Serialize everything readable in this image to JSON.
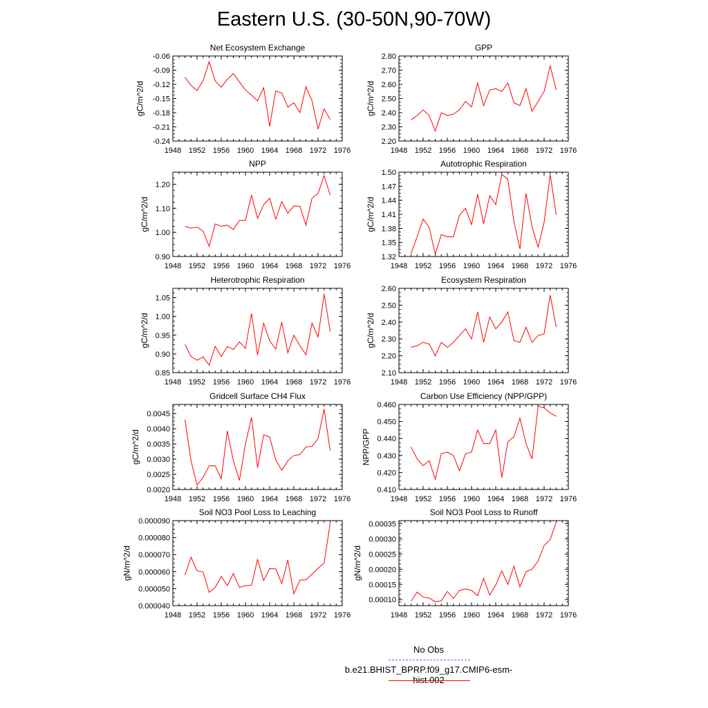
{
  "title": "Eastern U.S. (30-50N,90-70W)",
  "colors": {
    "model": "#ff0000",
    "obs": "#6a6ae0"
  },
  "legend": {
    "obs_label": "No Obs",
    "model_label": "b.e21.BHIST_BPRP.f09_g17.CMIP6-esm-hist.002"
  },
  "chart_data": [
    {
      "type": "line",
      "title": "Net Ecosystem Exchange",
      "ylabel": "gC/m^2/d",
      "xlim": [
        1948,
        1976
      ],
      "ylim": [
        -0.24,
        -0.06
      ],
      "xticks": [
        "1948",
        "1952",
        "1956",
        "1960",
        "1964",
        "1968",
        "1972",
        "1976"
      ],
      "yticks": [
        "-0.24",
        "-0.21",
        "-0.18",
        "-0.15",
        "-0.12",
        "-0.09",
        "-0.06"
      ],
      "series": [
        {
          "x": [
            1950,
            1951,
            1952,
            1953,
            1954,
            1955,
            1956,
            1957,
            1958,
            1959,
            1960,
            1961,
            1962,
            1963,
            1964,
            1965,
            1966,
            1967,
            1968,
            1969,
            1970,
            1971,
            1972,
            1973,
            1974
          ],
          "y": [
            -0.105,
            -0.122,
            -0.133,
            -0.112,
            -0.072,
            -0.113,
            -0.126,
            -0.109,
            -0.097,
            -0.115,
            -0.132,
            -0.143,
            -0.155,
            -0.127,
            -0.209,
            -0.134,
            -0.138,
            -0.168,
            -0.159,
            -0.18,
            -0.125,
            -0.155,
            -0.215,
            -0.172,
            -0.194
          ]
        }
      ]
    },
    {
      "type": "line",
      "title": "GPP",
      "ylabel": "gC/m^2/d",
      "xlim": [
        1948,
        1976
      ],
      "ylim": [
        2.2,
        2.8
      ],
      "xticks": [
        "1948",
        "1952",
        "1956",
        "1960",
        "1964",
        "1968",
        "1972",
        "1976"
      ],
      "yticks": [
        "2.20",
        "2.30",
        "2.40",
        "2.50",
        "2.60",
        "2.70",
        "2.80"
      ],
      "series": [
        {
          "x": [
            1950,
            1951,
            1952,
            1953,
            1954,
            1955,
            1956,
            1957,
            1958,
            1959,
            1960,
            1961,
            1962,
            1963,
            1964,
            1965,
            1966,
            1967,
            1968,
            1969,
            1970,
            1971,
            1972,
            1973,
            1974
          ],
          "y": [
            2.35,
            2.38,
            2.42,
            2.38,
            2.27,
            2.4,
            2.38,
            2.39,
            2.42,
            2.48,
            2.44,
            2.61,
            2.45,
            2.56,
            2.57,
            2.55,
            2.61,
            2.47,
            2.45,
            2.57,
            2.41,
            2.48,
            2.55,
            2.73,
            2.56
          ]
        }
      ]
    },
    {
      "type": "line",
      "title": "NPP",
      "ylabel": "gC/m^2/d",
      "xlim": [
        1948,
        1976
      ],
      "ylim": [
        0.9,
        1.25
      ],
      "xticks": [
        "1948",
        "1952",
        "1956",
        "1960",
        "1964",
        "1968",
        "1972",
        "1976"
      ],
      "yticks": [
        "0.90",
        "1.00",
        "1.10",
        "1.20"
      ],
      "series": [
        {
          "x": [
            1950,
            1951,
            1952,
            1953,
            1954,
            1955,
            1956,
            1957,
            1958,
            1959,
            1960,
            1961,
            1962,
            1963,
            1964,
            1965,
            1966,
            1967,
            1968,
            1969,
            1970,
            1971,
            1972,
            1973,
            1974
          ],
          "y": [
            1.025,
            1.018,
            1.022,
            1.005,
            0.942,
            1.035,
            1.025,
            1.03,
            1.012,
            1.05,
            1.05,
            1.155,
            1.058,
            1.115,
            1.142,
            1.055,
            1.128,
            1.08,
            1.11,
            1.108,
            1.03,
            1.142,
            1.162,
            1.235,
            1.155
          ]
        }
      ]
    },
    {
      "type": "line",
      "title": "Autotrophic Respiration",
      "ylabel": "gC/m^2/d",
      "xlim": [
        1948,
        1976
      ],
      "ylim": [
        1.32,
        1.5
      ],
      "xticks": [
        "1948",
        "1952",
        "1956",
        "1960",
        "1964",
        "1968",
        "1972",
        "1976"
      ],
      "yticks": [
        "1.32",
        "1.35",
        "1.38",
        "1.41",
        "1.44",
        "1.47",
        "1.50"
      ],
      "series": [
        {
          "x": [
            1950,
            1951,
            1952,
            1953,
            1954,
            1955,
            1956,
            1957,
            1958,
            1959,
            1960,
            1961,
            1962,
            1963,
            1964,
            1965,
            1966,
            1967,
            1968,
            1969,
            1970,
            1971,
            1972,
            1973,
            1974
          ],
          "y": [
            1.326,
            1.362,
            1.4,
            1.382,
            1.325,
            1.367,
            1.362,
            1.362,
            1.408,
            1.423,
            1.388,
            1.453,
            1.39,
            1.45,
            1.431,
            1.495,
            1.485,
            1.395,
            1.336,
            1.455,
            1.384,
            1.34,
            1.393,
            1.495,
            1.409
          ]
        }
      ]
    },
    {
      "type": "line",
      "title": "Heterotrophic Respiration",
      "ylabel": "gC/m^2/d",
      "xlim": [
        1948,
        1976
      ],
      "ylim": [
        0.85,
        1.075
      ],
      "xticks": [
        "1948",
        "1952",
        "1956",
        "1960",
        "1964",
        "1968",
        "1972",
        "1976"
      ],
      "yticks": [
        "0.85",
        "0.90",
        "0.95",
        "1.00",
        "1.05"
      ],
      "series": [
        {
          "x": [
            1950,
            1951,
            1952,
            1953,
            1954,
            1955,
            1956,
            1957,
            1958,
            1959,
            1960,
            1961,
            1962,
            1963,
            1964,
            1965,
            1966,
            1967,
            1968,
            1969,
            1970,
            1971,
            1972,
            1973,
            1974
          ],
          "y": [
            0.925,
            0.893,
            0.883,
            0.892,
            0.87,
            0.92,
            0.893,
            0.92,
            0.912,
            0.932,
            0.915,
            1.008,
            0.897,
            0.982,
            0.935,
            0.913,
            0.985,
            0.903,
            0.95,
            0.922,
            0.898,
            0.982,
            0.945,
            1.06,
            0.96
          ]
        }
      ]
    },
    {
      "type": "line",
      "title": "Ecosystem Respiration",
      "ylabel": "gC/m^2/d",
      "xlim": [
        1948,
        1976
      ],
      "ylim": [
        2.1,
        2.6
      ],
      "xticks": [
        "1948",
        "1952",
        "1956",
        "1960",
        "1964",
        "1968",
        "1972",
        "1976"
      ],
      "yticks": [
        "2.10",
        "2.20",
        "2.30",
        "2.40",
        "2.50",
        "2.60"
      ],
      "series": [
        {
          "x": [
            1950,
            1951,
            1952,
            1953,
            1954,
            1955,
            1956,
            1957,
            1958,
            1959,
            1960,
            1961,
            1962,
            1963,
            1964,
            1965,
            1966,
            1967,
            1968,
            1969,
            1970,
            1971,
            1972,
            1973,
            1974
          ],
          "y": [
            2.25,
            2.26,
            2.28,
            2.27,
            2.2,
            2.28,
            2.25,
            2.28,
            2.32,
            2.36,
            2.3,
            2.46,
            2.28,
            2.43,
            2.36,
            2.4,
            2.46,
            2.29,
            2.28,
            2.37,
            2.28,
            2.32,
            2.33,
            2.56,
            2.37
          ]
        }
      ]
    },
    {
      "type": "line",
      "title": "Gridcell Surface CH4 Flux",
      "ylabel": "gC/m^2/d",
      "xlim": [
        1948,
        1976
      ],
      "ylim": [
        0.002,
        0.0048
      ],
      "xticks": [
        "1948",
        "1952",
        "1956",
        "1960",
        "1964",
        "1968",
        "1972",
        "1976"
      ],
      "yticks": [
        "0.0020",
        "0.0025",
        "0.0030",
        "0.0035",
        "0.0040",
        "0.0045"
      ],
      "series": [
        {
          "x": [
            1950,
            1951,
            1952,
            1953,
            1954,
            1955,
            1956,
            1957,
            1958,
            1959,
            1960,
            1961,
            1962,
            1963,
            1964,
            1965,
            1966,
            1967,
            1968,
            1969,
            1970,
            1971,
            1972,
            1973,
            1974
          ],
          "y": [
            0.0043,
            0.00295,
            0.00215,
            0.0024,
            0.00278,
            0.00278,
            0.00235,
            0.00393,
            0.00295,
            0.0023,
            0.0035,
            0.00438,
            0.00272,
            0.0038,
            0.00373,
            0.00298,
            0.00263,
            0.00295,
            0.00312,
            0.00315,
            0.0034,
            0.00342,
            0.00368,
            0.00465,
            0.00328
          ]
        }
      ]
    },
    {
      "type": "line",
      "title": "Carbon Use Efficiency (NPP/GPP)",
      "ylabel": "NPP/GPP",
      "xlim": [
        1948,
        1976
      ],
      "ylim": [
        0.41,
        0.46
      ],
      "xticks": [
        "1948",
        "1952",
        "1956",
        "1960",
        "1964",
        "1968",
        "1972",
        "1976"
      ],
      "yticks": [
        "0.410",
        "0.420",
        "0.430",
        "0.440",
        "0.450",
        "0.460"
      ],
      "series": [
        {
          "x": [
            1950,
            1951,
            1952,
            1953,
            1954,
            1955,
            1956,
            1957,
            1958,
            1959,
            1960,
            1961,
            1962,
            1963,
            1964,
            1965,
            1966,
            1967,
            1968,
            1969,
            1970,
            1971,
            1972,
            1973,
            1974
          ],
          "y": [
            0.435,
            0.428,
            0.424,
            0.427,
            0.416,
            0.431,
            0.432,
            0.43,
            0.421,
            0.431,
            0.432,
            0.445,
            0.437,
            0.437,
            0.445,
            0.417,
            0.438,
            0.441,
            0.452,
            0.437,
            0.428,
            0.459,
            0.458,
            0.455,
            0.453
          ]
        }
      ]
    },
    {
      "type": "line",
      "title": "Soil NO3 Pool Loss to Leaching",
      "ylabel": "gN/m^2/d",
      "xlim": [
        1948,
        1976
      ],
      "ylim": [
        4e-05,
        9e-05
      ],
      "xticks": [
        "1948",
        "1952",
        "1956",
        "1960",
        "1964",
        "1968",
        "1972",
        "1976"
      ],
      "yticks": [
        "0.000040",
        "0.000050",
        "0.000060",
        "0.000070",
        "0.000080",
        "0.000090"
      ],
      "series": [
        {
          "x": [
            1950,
            1951,
            1952,
            1953,
            1954,
            1955,
            1956,
            1957,
            1958,
            1959,
            1960,
            1961,
            1962,
            1963,
            1964,
            1965,
            1966,
            1967,
            1968,
            1969,
            1970,
            1971,
            1972,
            1973,
            1974
          ],
          "y": [
            5.8e-05,
            6.85e-05,
            6.05e-05,
            5.98e-05,
            4.78e-05,
            5.08e-05,
            5.72e-05,
            5.18e-05,
            5.9e-05,
            5.08e-05,
            5.18e-05,
            5.2e-05,
            6.72e-05,
            5.48e-05,
            6.18e-05,
            6.16e-05,
            5.3e-05,
            6.68e-05,
            4.7e-05,
            5.5e-05,
            5.52e-05,
            5.85e-05,
            6.2e-05,
            6.5e-05,
            8.85e-05
          ]
        }
      ]
    },
    {
      "type": "line",
      "title": "Soil NO3 Pool Loss to Runoff",
      "ylabel": "gN/m^2/d",
      "xlim": [
        1948,
        1976
      ],
      "ylim": [
        8e-05,
        0.00036
      ],
      "xticks": [
        "1948",
        "1952",
        "1956",
        "1960",
        "1964",
        "1968",
        "1972",
        "1976"
      ],
      "yticks": [
        "0.00010",
        "0.00015",
        "0.00020",
        "0.00025",
        "0.00030",
        "0.00035"
      ],
      "series": [
        {
          "x": [
            1950,
            1951,
            1952,
            1953,
            1954,
            1955,
            1956,
            1957,
            1958,
            1959,
            1960,
            1961,
            1962,
            1963,
            1964,
            1965,
            1966,
            1967,
            1968,
            1969,
            1970,
            1971,
            1972,
            1973,
            1974
          ],
          "y": [
            9.5e-05,
            0.000125,
            0.000108,
            0.000105,
            9.3e-05,
            9.6e-05,
            0.000127,
            0.000104,
            0.00013,
            0.000135,
            0.00013,
            0.000113,
            0.00017,
            0.000115,
            0.000148,
            0.000195,
            0.00015,
            0.00021,
            0.000142,
            0.000192,
            0.0002,
            0.000228,
            0.000278,
            0.000298,
            0.000355
          ]
        }
      ]
    }
  ]
}
